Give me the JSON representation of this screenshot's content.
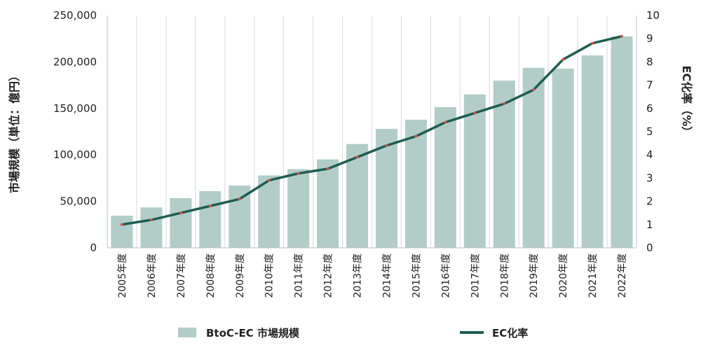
{
  "chart_data": {
    "type": "bar",
    "categories": [
      "2005年度",
      "2006年度",
      "2007年度",
      "2008年度",
      "2009年度",
      "2010年度",
      "2011年度",
      "2012年度",
      "2013年度",
      "2014年度",
      "2015年度",
      "2016年度",
      "2017年度",
      "2018年度",
      "2019年度",
      "2020年度",
      "2021年度",
      "2022年度"
    ],
    "series": [
      {
        "name": "BtoC-EC 市場規模",
        "type": "bar",
        "axis": "left",
        "color": "#b2cdc8",
        "values": [
          34560,
          43460,
          53440,
          60890,
          66960,
          77880,
          84590,
          95130,
          111660,
          127970,
          137746,
          151358,
          165054,
          179845,
          193609,
          192779,
          206950,
          227449
        ]
      },
      {
        "name": "EC化率",
        "type": "line",
        "axis": "right",
        "color": "#1f5c52",
        "marker_color": "#d9534f",
        "values": [
          1.0,
          1.2,
          1.5,
          1.8,
          2.1,
          2.9,
          3.2,
          3.4,
          3.9,
          4.4,
          4.8,
          5.4,
          5.8,
          6.2,
          6.8,
          8.1,
          8.8,
          9.1
        ]
      }
    ],
    "ylabel": "市場規模（単位：億円）",
    "y2label": "EC化率（%）",
    "ylim": [
      0,
      250000
    ],
    "y2lim": [
      0,
      10
    ],
    "yticks": [
      "0",
      "50,000",
      "100,000",
      "150,000",
      "200,000",
      "250,000"
    ],
    "y2ticks": [
      "0",
      "1",
      "2",
      "3",
      "4",
      "5",
      "6",
      "7",
      "8",
      "9",
      "10"
    ],
    "grid": "vertical",
    "legend": "bottom"
  }
}
